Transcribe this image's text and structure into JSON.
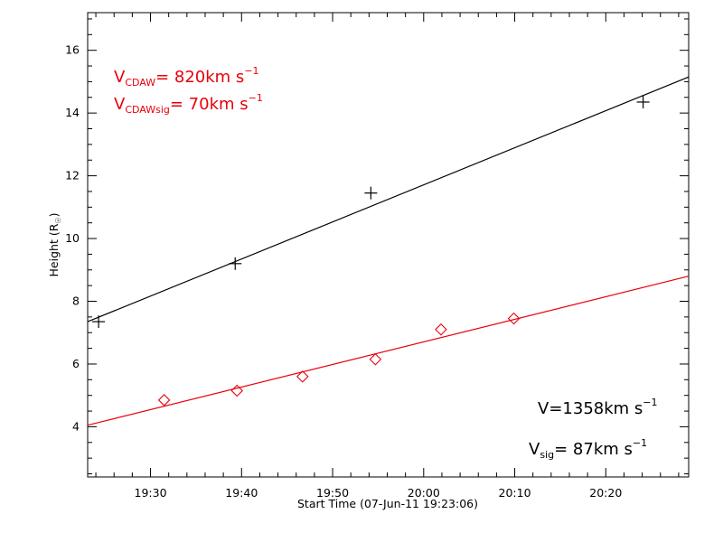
{
  "chart_data": {
    "type": "scatter",
    "title": "",
    "xlabel": "Start Time (07-Jun-11 19:23:06)",
    "ylabel": "Height",
    "ylabel_unit": "(R",
    "ylabel_sub": "☉",
    "ylabel_close": ")",
    "xlim_minutes_since_1923": [
      0,
      66
    ],
    "ylim": [
      2.4,
      17.2
    ],
    "x_ticks": [
      {
        "minute": 6.9,
        "label": "19:30"
      },
      {
        "minute": 16.9,
        "label": "19:40"
      },
      {
        "minute": 26.9,
        "label": "19:50"
      },
      {
        "minute": 36.9,
        "label": "20:00"
      },
      {
        "minute": 46.9,
        "label": "20:10"
      },
      {
        "minute": 56.9,
        "label": "20:20"
      }
    ],
    "y_ticks": [
      4,
      6,
      8,
      10,
      12,
      14,
      16
    ],
    "grid": false,
    "series": [
      {
        "color": "#000000",
        "marker": "plus",
        "points": [
          {
            "time": "19:24",
            "minute": 1.2,
            "y": 7.35
          },
          {
            "time": "19:39",
            "minute": 16.2,
            "y": 9.2
          },
          {
            "time": "19:54",
            "minute": 31.1,
            "y": 11.45
          },
          {
            "time": "20:24",
            "minute": 61.0,
            "y": 14.35
          }
        ],
        "fit_line": [
          [
            0,
            7.35
          ],
          [
            66,
            15.15
          ]
        ]
      },
      {
        "color": "#e8000b",
        "marker": "diamond",
        "points": [
          {
            "time": "19:31",
            "minute": 8.4,
            "y": 4.85
          },
          {
            "time": "19:39",
            "minute": 16.4,
            "y": 5.15
          },
          {
            "time": "19:46",
            "minute": 23.6,
            "y": 5.6
          },
          {
            "time": "19:54",
            "minute": 31.6,
            "y": 6.15
          },
          {
            "time": "20:01",
            "minute": 38.8,
            "y": 7.1
          },
          {
            "time": "20:09",
            "minute": 46.8,
            "y": 7.45
          }
        ],
        "fit_line": [
          [
            0,
            4.05
          ],
          [
            66,
            8.8
          ]
        ]
      }
    ],
    "annotations": {
      "red_1": {
        "prefix": "V",
        "sub": "CDAW",
        "mid": "= 820km s",
        "sup": "−1"
      },
      "red_2": {
        "prefix": "V",
        "sub": "CDAWsig",
        "mid": "=  70km s",
        "sup": "−1"
      },
      "black_1": {
        "prefix": "V",
        "sub": "",
        "mid": "=1358km s",
        "sup": "−1"
      },
      "black_2": {
        "prefix": "V",
        "sub": "sig",
        "mid": "=  87km s",
        "sup": "−1"
      }
    }
  }
}
